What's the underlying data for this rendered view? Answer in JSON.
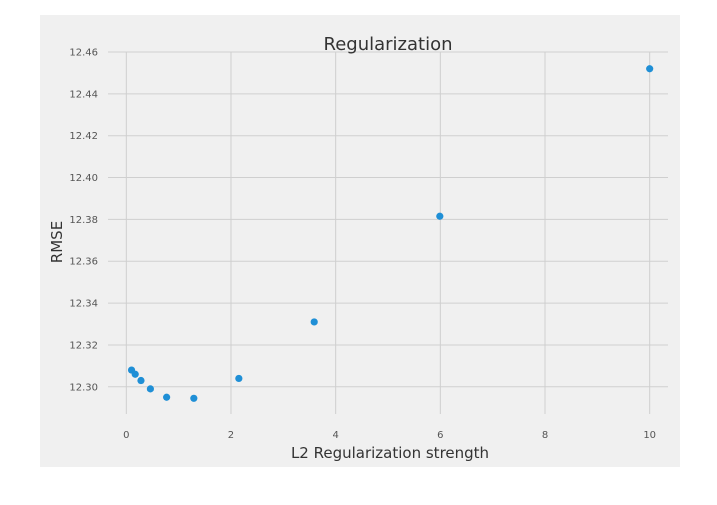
{
  "chart_data": {
    "type": "scatter",
    "title": "Regularization",
    "xlabel": "L2 Regularization strength",
    "ylabel": "RMSE",
    "xlim": [
      -0.35,
      10.35
    ],
    "ylim": [
      12.287,
      12.46
    ],
    "xticks": [
      0,
      2,
      4,
      6,
      8,
      10
    ],
    "xtick_labels": [
      "0",
      "2",
      "4",
      "6",
      "8",
      "10"
    ],
    "yticks": [
      12.3,
      12.32,
      12.34,
      12.36,
      12.38,
      12.4,
      12.42,
      12.44,
      12.46
    ],
    "ytick_labels": [
      "12.30",
      "12.32",
      "12.34",
      "12.36",
      "12.38",
      "12.40",
      "12.42",
      "12.44",
      "12.46"
    ],
    "grid": true,
    "series": [
      {
        "color": "#1f8fd6",
        "points": [
          {
            "x": 0.1,
            "y": 12.308
          },
          {
            "x": 0.17,
            "y": 12.306
          },
          {
            "x": 0.28,
            "y": 12.303
          },
          {
            "x": 0.46,
            "y": 12.299
          },
          {
            "x": 0.77,
            "y": 12.295
          },
          {
            "x": 1.29,
            "y": 12.2945
          },
          {
            "x": 2.15,
            "y": 12.304
          },
          {
            "x": 3.59,
            "y": 12.331
          },
          {
            "x": 5.99,
            "y": 12.3815
          },
          {
            "x": 10.0,
            "y": 12.452
          }
        ]
      }
    ],
    "colors": {
      "plot_background": "#f0f0f0",
      "grid": "#cfcfcf",
      "marker": "#1f8fd6"
    }
  }
}
